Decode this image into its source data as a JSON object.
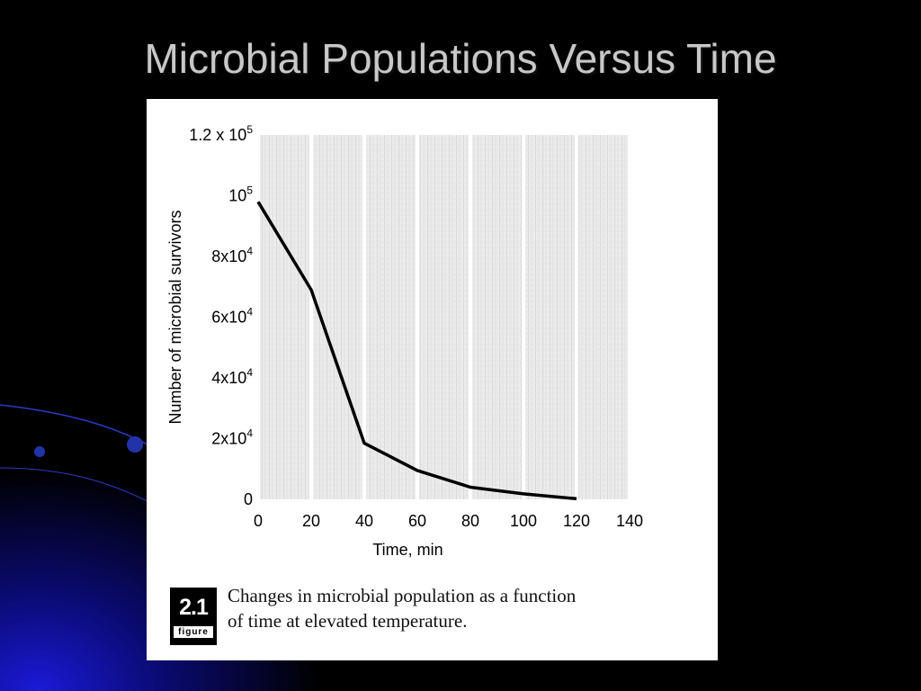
{
  "slide": {
    "title": "Microbial Populations Versus Time"
  },
  "figure": {
    "badge_number": "2.1",
    "badge_word": "figure",
    "caption_line1": "Changes in microbial population as a function",
    "caption_line2": "of time at elevated temperature."
  },
  "chart_data": {
    "type": "line",
    "xlabel": "Time, min",
    "ylabel": "Number of microbial survivors",
    "x": [
      0,
      20,
      40,
      60,
      80,
      100,
      120
    ],
    "series": [
      {
        "values": [
          98000,
          69000,
          18500,
          9500,
          4000,
          1800,
          200
        ]
      }
    ],
    "xticks": [
      "0",
      "20",
      "40",
      "60",
      "80",
      "100",
      "120",
      "140"
    ],
    "yticks": [
      {
        "value": 0,
        "base": "0",
        "exp": ""
      },
      {
        "value": 20000,
        "base": "2x10",
        "exp": "4"
      },
      {
        "value": 40000,
        "base": "4x10",
        "exp": "4"
      },
      {
        "value": 60000,
        "base": "6x10",
        "exp": "4"
      },
      {
        "value": 80000,
        "base": "8x10",
        "exp": "4"
      },
      {
        "value": 100000,
        "base": "10",
        "exp": "5"
      },
      {
        "value": 120000,
        "base": "1.2 x 10",
        "exp": "5"
      }
    ],
    "xlim": [
      0,
      140
    ],
    "ylim": [
      0,
      120000
    ],
    "grid": "hatched background",
    "line_color": "#000000"
  }
}
